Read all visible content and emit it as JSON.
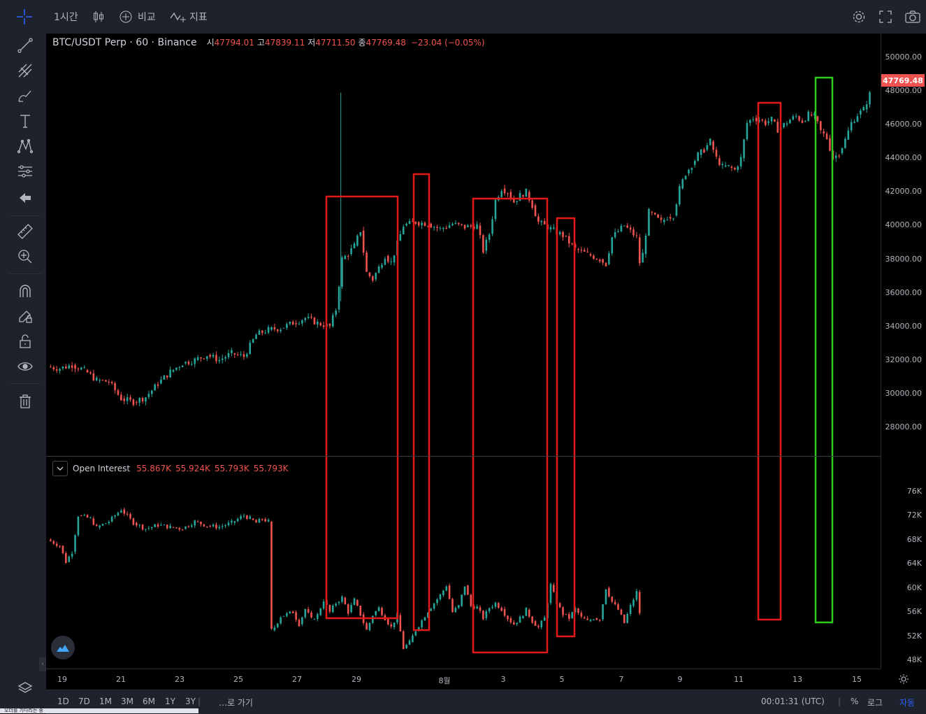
{
  "toolbar": {
    "interval": "1시간",
    "compare": "비교",
    "indicators": "지표"
  },
  "legend": {
    "symbol": "BTC/USDT Perp · 60 · Binance",
    "o_label": "시",
    "o_value": "47794.01",
    "h_label": "고",
    "h_value": "47839.11",
    "l_label": "저",
    "l_value": "47711.50",
    "c_label": "종",
    "c_value": "47769.48",
    "change": "−23.04 (−0.05%)"
  },
  "oi_legend": {
    "name": "Open Interest",
    "v1": "55.867K",
    "v2": "55.924K",
    "v3": "55.793K",
    "v4": "55.793K"
  },
  "price_scale": [
    "50000.00",
    "48000.00",
    "46000.00",
    "44000.00",
    "42000.00",
    "40000.00",
    "38000.00",
    "36000.00",
    "34000.00",
    "32000.00",
    "30000.00",
    "28000.00"
  ],
  "last_price": "47769.48",
  "oi_scale": [
    "76K",
    "72K",
    "68K",
    "64K",
    "60K",
    "56K",
    "52K",
    "48K"
  ],
  "time_axis": [
    "19",
    "21",
    "23",
    "25",
    "27",
    "29",
    "8월",
    "3",
    "5",
    "7",
    "9",
    "11",
    "13",
    "15"
  ],
  "ranges": [
    "1D",
    "7D",
    "1M",
    "3M",
    "6M",
    "1Y",
    "3Y"
  ],
  "goto": "…로 가기",
  "clock": "00:01:31 (UTC)",
  "scale_modes": {
    "percent": "%",
    "log": "로그",
    "auto": "자동"
  },
  "bottom_strip": "오더를 기다리는 중",
  "colors": {
    "up": "#26a69a",
    "down": "#ef5350",
    "box_red": "#e61919",
    "box_green": "#2ecc1f",
    "accent": "#2962ff"
  },
  "chart_data": {
    "type": "candlestick",
    "symbol": "BTC/USDT Perp",
    "interval": "60",
    "price_ylim": [
      27000,
      51000
    ],
    "oi_ylim": [
      47000,
      78500
    ],
    "x_date_range": [
      "07-18",
      "07-16+30"
    ],
    "price_series": [
      [
        0,
        31600
      ],
      [
        2,
        31500
      ],
      [
        4,
        31700
      ],
      [
        6,
        31400
      ],
      [
        8,
        30800
      ],
      [
        10,
        30700
      ],
      [
        12,
        29700
      ],
      [
        14,
        29500
      ],
      [
        16,
        29800
      ],
      [
        18,
        30600
      ],
      [
        20,
        31300
      ],
      [
        22,
        31800
      ],
      [
        24,
        32000
      ],
      [
        26,
        32300
      ],
      [
        28,
        32000
      ],
      [
        30,
        32400
      ],
      [
        32,
        32200
      ],
      [
        34,
        33500
      ],
      [
        36,
        33800
      ],
      [
        38,
        33900
      ],
      [
        40,
        34200
      ],
      [
        42,
        34500
      ],
      [
        44,
        34200
      ],
      [
        46,
        34000
      ],
      [
        47,
        35000
      ],
      [
        48,
        38000
      ],
      [
        49,
        38300
      ],
      [
        50,
        38800
      ],
      [
        51,
        39700
      ],
      [
        52,
        37200
      ],
      [
        53,
        36800
      ],
      [
        54,
        37500
      ],
      [
        55,
        38200
      ],
      [
        56,
        37800
      ],
      [
        58,
        40000
      ],
      [
        60,
        40200
      ],
      [
        62,
        40100
      ],
      [
        64,
        39800
      ],
      [
        66,
        40100
      ],
      [
        68,
        39900
      ],
      [
        70,
        40000
      ],
      [
        71,
        38500
      ],
      [
        72,
        39500
      ],
      [
        73,
        41500
      ],
      [
        74,
        42200
      ],
      [
        75,
        42000
      ],
      [
        76,
        41400
      ],
      [
        77,
        41800
      ],
      [
        78,
        42000
      ],
      [
        79,
        41200
      ],
      [
        80,
        40200
      ],
      [
        82,
        39800
      ],
      [
        84,
        39400
      ],
      [
        86,
        38600
      ],
      [
        88,
        38300
      ],
      [
        90,
        38000
      ],
      [
        91,
        37700
      ],
      [
        92,
        39300
      ],
      [
        94,
        40000
      ],
      [
        96,
        39300
      ],
      [
        96.5,
        37800
      ],
      [
        97,
        38300
      ],
      [
        98,
        40800
      ],
      [
        100,
        40200
      ],
      [
        101,
        40500
      ],
      [
        102,
        40600
      ],
      [
        103,
        42200
      ],
      [
        104,
        43100
      ],
      [
        105,
        43600
      ],
      [
        106,
        44200
      ],
      [
        107,
        44500
      ],
      [
        108,
        45000
      ],
      [
        109,
        44000
      ],
      [
        110,
        43500
      ],
      [
        111,
        43500
      ],
      [
        112,
        43300
      ],
      [
        113,
        44000
      ],
      [
        114,
        46100
      ],
      [
        115,
        46400
      ],
      [
        116,
        46300
      ],
      [
        117,
        46100
      ],
      [
        118,
        46300
      ],
      [
        119,
        45700
      ],
      [
        120,
        46000
      ],
      [
        121,
        46300
      ],
      [
        122,
        46500
      ],
      [
        123,
        46200
      ],
      [
        124,
        46600
      ],
      [
        125,
        46500
      ],
      [
        126,
        45600
      ],
      [
        127,
        45200
      ],
      [
        128,
        44000
      ],
      [
        129,
        44300
      ],
      [
        130,
        45100
      ],
      [
        131,
        46100
      ],
      [
        132,
        46600
      ],
      [
        133,
        46900
      ],
      [
        134,
        47800
      ]
    ],
    "oi_series": [
      [
        0,
        68000
      ],
      [
        2,
        67000
      ],
      [
        3,
        64300
      ],
      [
        4,
        66000
      ],
      [
        5,
        72000
      ],
      [
        7,
        71500
      ],
      [
        8,
        70000
      ],
      [
        10,
        71000
      ],
      [
        12,
        73000
      ],
      [
        14,
        70800
      ],
      [
        16,
        69800
      ],
      [
        18,
        70400
      ],
      [
        20,
        70100
      ],
      [
        22,
        69800
      ],
      [
        24,
        71000
      ],
      [
        26,
        70300
      ],
      [
        28,
        70100
      ],
      [
        30,
        70800
      ],
      [
        32,
        72000
      ],
      [
        33,
        71500
      ],
      [
        34,
        70800
      ],
      [
        35,
        71400
      ],
      [
        36,
        71000
      ],
      [
        36.5,
        53000
      ],
      [
        37,
        53500
      ],
      [
        38,
        55300
      ],
      [
        40,
        56000
      ],
      [
        41,
        54000
      ],
      [
        42,
        56500
      ],
      [
        43,
        54800
      ],
      [
        44,
        55500
      ],
      [
        45,
        58000
      ],
      [
        46,
        56000
      ],
      [
        47,
        57500
      ],
      [
        48,
        58400
      ],
      [
        49,
        56000
      ],
      [
        50,
        58000
      ],
      [
        51,
        55600
      ],
      [
        52,
        53000
      ],
      [
        53,
        55500
      ],
      [
        54,
        56700
      ],
      [
        55,
        55000
      ],
      [
        56,
        53500
      ],
      [
        57,
        55500
      ],
      [
        58,
        50000
      ],
      [
        59,
        51000
      ],
      [
        60,
        53000
      ],
      [
        61,
        54600
      ],
      [
        62,
        56200
      ],
      [
        63,
        57500
      ],
      [
        64,
        58800
      ],
      [
        65,
        60400
      ],
      [
        66,
        56000
      ],
      [
        67,
        57000
      ],
      [
        68,
        60400
      ],
      [
        69,
        57000
      ],
      [
        70,
        56800
      ],
      [
        71,
        55000
      ],
      [
        72,
        56700
      ],
      [
        73,
        57500
      ],
      [
        74,
        56500
      ],
      [
        75,
        55000
      ],
      [
        76,
        54000
      ],
      [
        77,
        55000
      ],
      [
        78,
        56400
      ],
      [
        79,
        54500
      ],
      [
        80,
        53500
      ],
      [
        81,
        55000
      ],
      [
        82,
        60500
      ],
      [
        83,
        57500
      ],
      [
        84,
        55700
      ],
      [
        85,
        55000
      ],
      [
        86,
        56600
      ],
      [
        87,
        55100
      ],
      [
        88,
        54500
      ],
      [
        89,
        55000
      ],
      [
        90,
        54800
      ],
      [
        91,
        60000
      ],
      [
        92,
        57700
      ],
      [
        93,
        56400
      ],
      [
        94,
        54200
      ],
      [
        95,
        57000
      ],
      [
        96,
        59300
      ],
      [
        96.5,
        55900
      ]
    ],
    "annotations": [
      {
        "type": "rect",
        "color": "red",
        "t0": 27.9,
        "t1": 30.3,
        "p0": 40000,
        "p1": 54500
      },
      {
        "type": "rect",
        "color": "red",
        "t0": 30.7,
        "t1": 31.2,
        "p0": 41000,
        "p1": 52000
      },
      {
        "type": "rect",
        "color": "red",
        "t0": 32.9,
        "t1": 35.4,
        "p0": 40000,
        "p1": 49000
      },
      {
        "type": "rect",
        "color": "red",
        "t0": 35.7,
        "t1": 36.3,
        "p0": 38000,
        "p1": 51000
      },
      {
        "type": "rect",
        "color": "red",
        "t0": 42.6,
        "t1": 43.4,
        "p0": 43000,
        "p1": 54000
      },
      {
        "type": "rect",
        "color": "green",
        "t0": 44.5,
        "t1": 45.1,
        "p0": 47000,
        "p1": 53000
      }
    ]
  }
}
